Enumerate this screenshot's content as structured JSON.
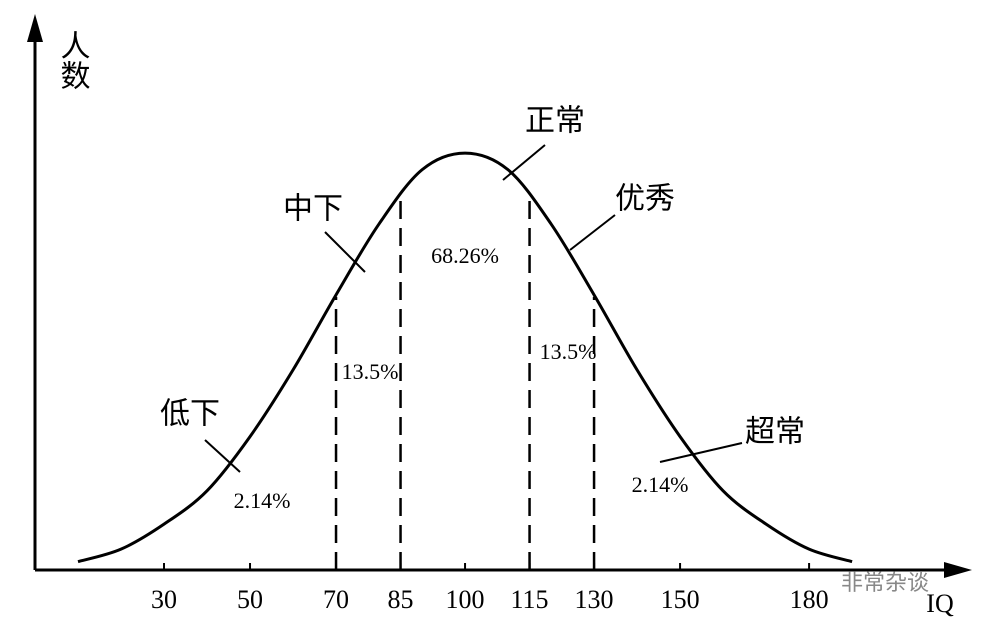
{
  "chart_data": {
    "type": "line",
    "x": [
      10,
      20,
      30,
      40,
      50,
      60,
      70,
      80,
      90,
      100,
      110,
      120,
      130,
      140,
      150,
      160,
      170,
      180,
      190
    ],
    "values": [
      2,
      5,
      11,
      19,
      32,
      48,
      66,
      83,
      96,
      100,
      96,
      83,
      66,
      48,
      32,
      19,
      11,
      5,
      2
    ],
    "color": "#000000",
    "xlim": [
      0,
      213
    ],
    "ylim": [
      0,
      130
    ],
    "xticks": [
      30,
      50,
      70,
      85,
      100,
      115,
      130,
      150,
      180
    ],
    "boundaries": [
      70,
      85,
      115,
      130
    ],
    "x_label": "IQ",
    "y_label": "人数",
    "annotations": [
      "低下",
      "中下",
      "正常",
      "优秀",
      "超常",
      "2.14%",
      "13.5%",
      "68.26%",
      "13.5%",
      "2.14%"
    ],
    "watermark": "非常杂谈"
  }
}
